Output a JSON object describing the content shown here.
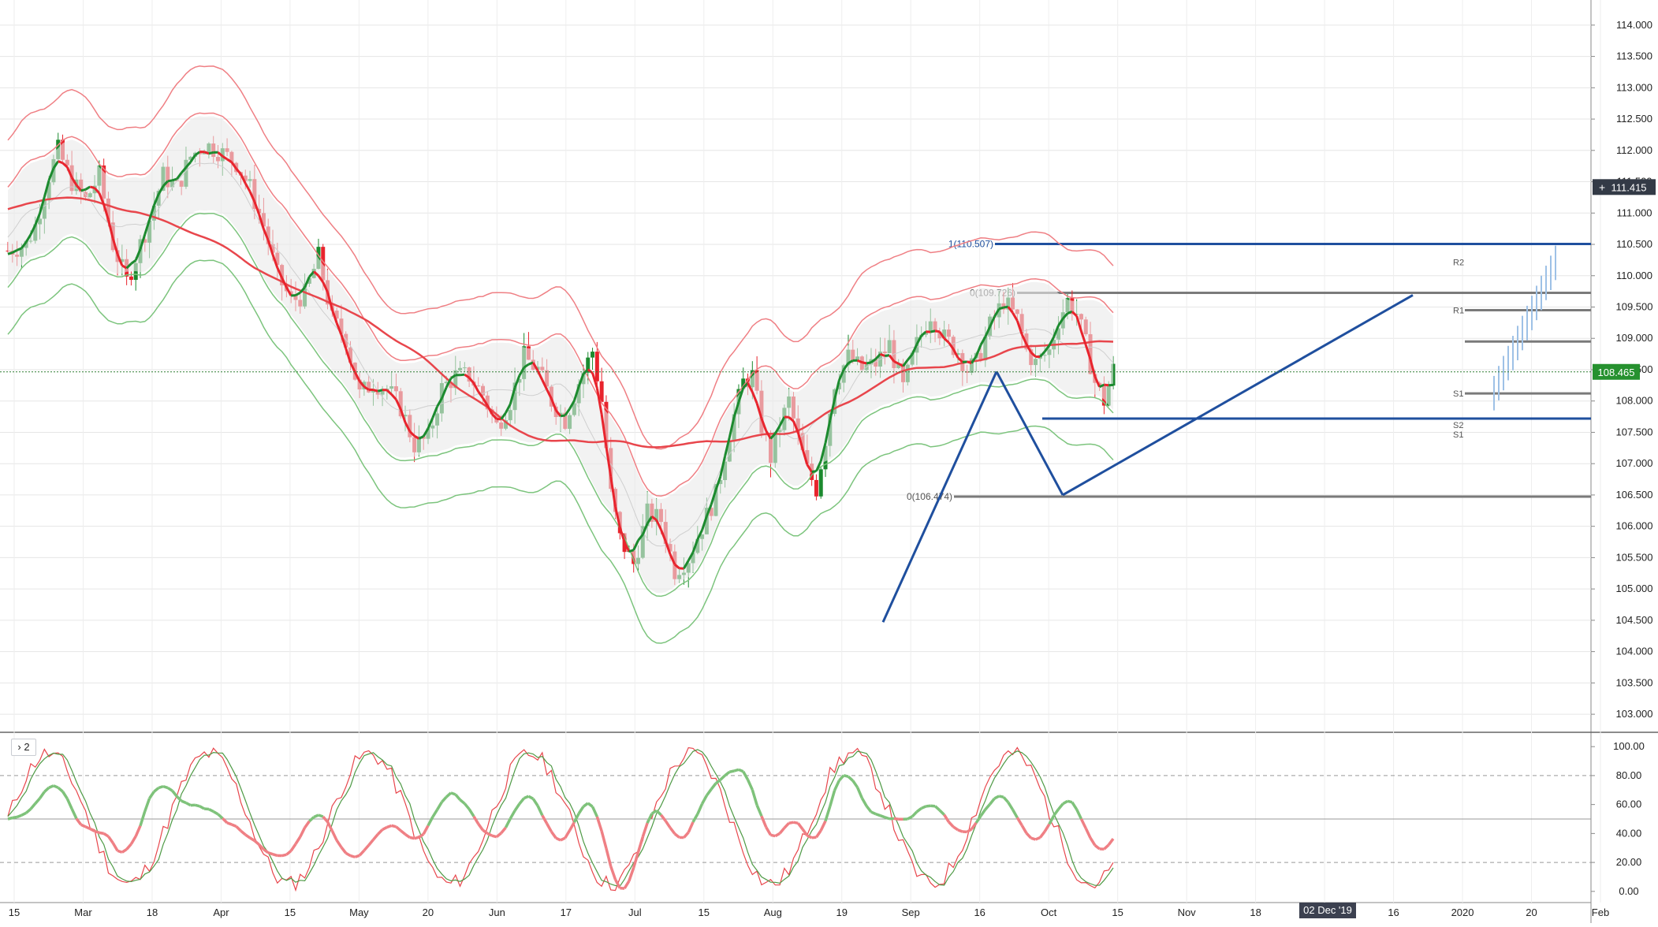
{
  "chart_data": {
    "type": "candlestick",
    "instrument_axis": {
      "price_ticks": [
        "114.000",
        "113.500",
        "113.000",
        "112.500",
        "112.000",
        "111.500",
        "111.000",
        "110.500",
        "110.000",
        "109.500",
        "109.000",
        "108.500",
        "108.000",
        "107.500",
        "107.000",
        "106.500",
        "106.000",
        "105.500",
        "105.000",
        "104.500",
        "104.000",
        "103.500",
        "103.000"
      ],
      "ylim": [
        102.8,
        114.3
      ],
      "last_price": "108.465",
      "crosshair_price": "111.415"
    },
    "oscillator": {
      "pane_label": "2",
      "ticks": [
        "100.00",
        "80.00",
        "60.00",
        "40.00",
        "20.00",
        "0.00"
      ],
      "ylim": [
        -5,
        105
      ],
      "levels": [
        80,
        50,
        20
      ]
    },
    "time_axis": {
      "labels": [
        "15",
        "Mar",
        "18",
        "Apr",
        "15",
        "May",
        "20",
        "Jun",
        "17",
        "Jul",
        "15",
        "Aug",
        "19",
        "Sep",
        "16",
        "Oct",
        "15",
        "Nov",
        "18",
        "Dec",
        "16",
        "2020",
        "20",
        "Feb"
      ],
      "crosshair_date": "02 Dec '19"
    },
    "fib_levels": [
      {
        "label": "1(110.507)",
        "value": 110.507
      },
      {
        "label": "0(109.726)",
        "value": 109.726
      },
      {
        "label": "0(106.474)",
        "value": 106.474
      }
    ],
    "pivot_labels": [
      "R2",
      "R1",
      "S1",
      "S2",
      "S1"
    ],
    "colors": {
      "up": "#1b8a2e",
      "down": "#e8242d",
      "bands_upper": "#ef7f84",
      "bands_lower": "#7cc47d",
      "drawing": "#1f4f9e",
      "level_gray": "#7a7a7a",
      "projection": "#9ec1e6",
      "ma_long_red": "#e8464c",
      "ma_long_green": "#4e9a45",
      "price_label_bg": "#333a46"
    }
  }
}
